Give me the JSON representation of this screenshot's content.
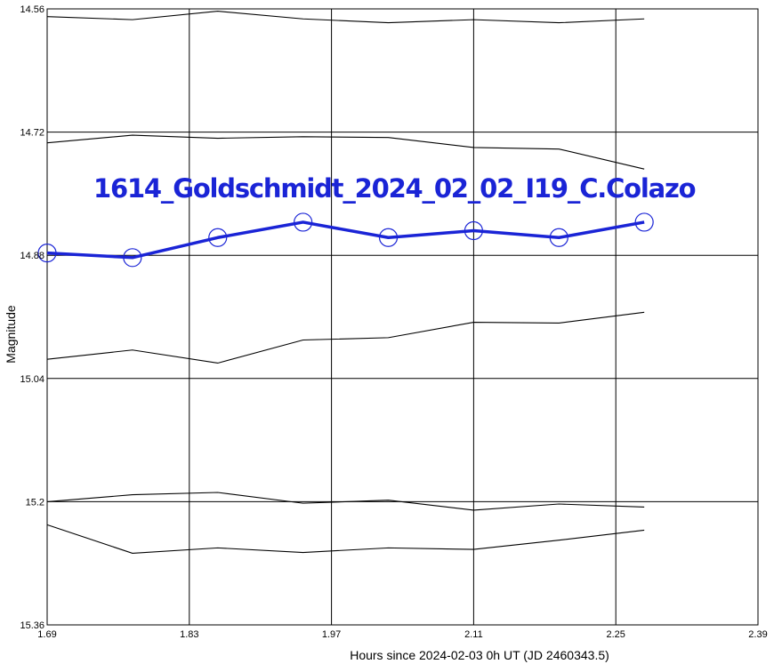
{
  "chart_data": {
    "type": "line",
    "title": "",
    "xlabel": "Hours since 2024-02-03 0h UT (JD 2460343.5)",
    "ylabel": "Magnitude",
    "xlim": [
      1.69,
      2.39
    ],
    "ylim": [
      14.56,
      15.36
    ],
    "y_inverted": true,
    "x_ticks": [
      "1.69",
      "1.83",
      "1.97",
      "2.11",
      "2.25",
      "2.39"
    ],
    "y_ticks": [
      "14.56",
      "14.72",
      "14.88",
      "15.04",
      "15.2",
      "15.36"
    ],
    "grid": true,
    "annotation": "1614_Goldschmidt_2024_02_02_I19_C.Colazo",
    "x": [
      1.69,
      1.774,
      1.858,
      1.942,
      2.026,
      2.11,
      2.194,
      2.278
    ],
    "highlight_color": "#1a24d6",
    "other_color": "#000000",
    "series": [
      {
        "highlight": false,
        "values": [
          14.57,
          14.574,
          14.563,
          14.573,
          14.578,
          14.574,
          14.578,
          14.573
        ]
      },
      {
        "highlight": false,
        "values": [
          14.734,
          14.724,
          14.728,
          14.726,
          14.727,
          14.74,
          14.742,
          14.768
        ]
      },
      {
        "highlight": true,
        "values": [
          14.877,
          14.883,
          14.857,
          14.837,
          14.857,
          14.848,
          14.857,
          14.837
        ]
      },
      {
        "highlight": false,
        "values": [
          15.015,
          15.003,
          15.02,
          14.99,
          14.987,
          14.967,
          14.968,
          14.954
        ]
      },
      {
        "highlight": false,
        "values": [
          15.2,
          15.191,
          15.188,
          15.202,
          15.198,
          15.211,
          15.203,
          15.207
        ]
      },
      {
        "highlight": false,
        "values": [
          15.23,
          15.267,
          15.26,
          15.266,
          15.26,
          15.262,
          15.25,
          15.237
        ]
      }
    ]
  }
}
